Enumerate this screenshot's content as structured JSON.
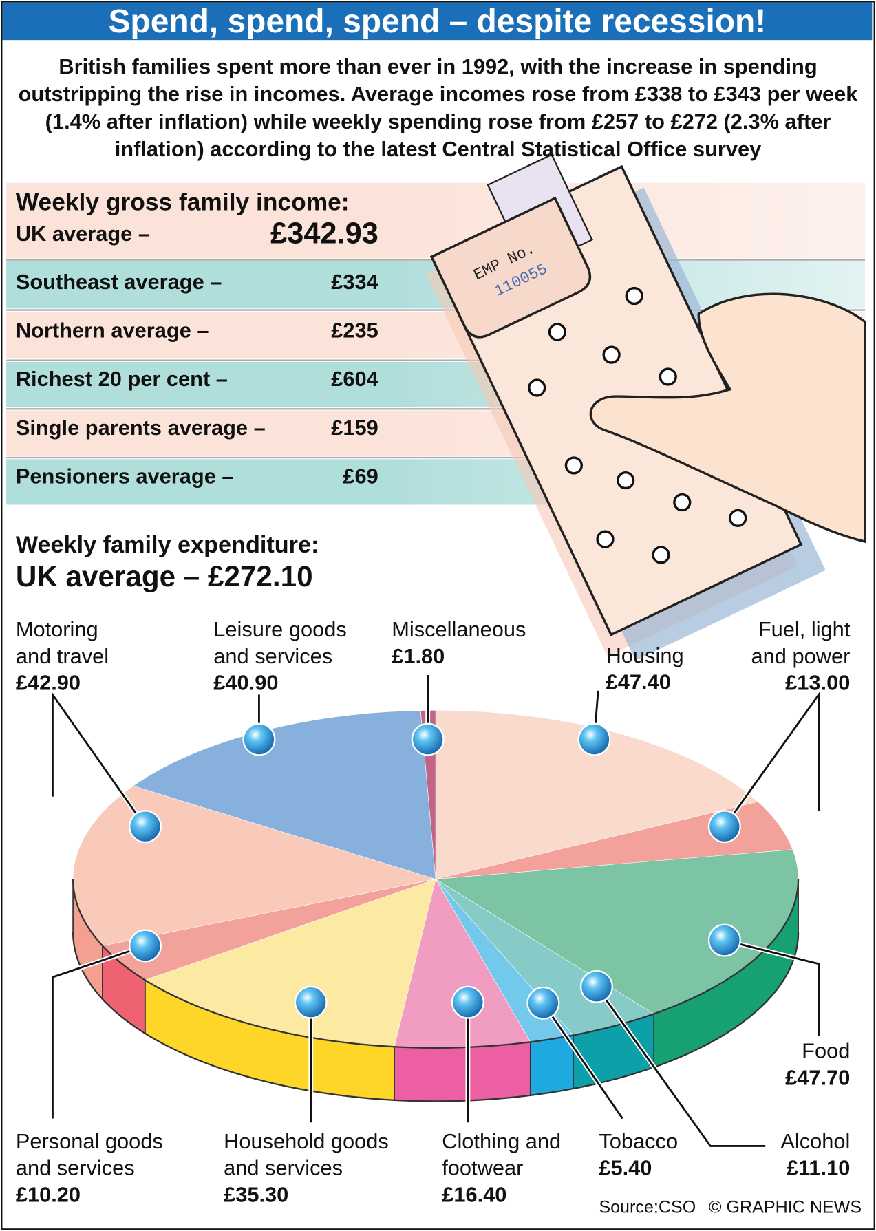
{
  "title": "Spend, spend, spend – despite recession!",
  "intro": "British families spent more than ever in 1992, with the increase in spending outstripping the rise in incomes. Average incomes rose from £338 to £343 per week (1.4% after inflation) while weekly spending rose from £257 to £272 (2.3% after inflation) according to the latest Central Statistical Office survey",
  "income": {
    "heading": "Weekly gross family income:",
    "rows": [
      {
        "label": "UK average –",
        "value": "£342.93"
      },
      {
        "label": "Southeast average –",
        "value": "£334"
      },
      {
        "label": "Northern average –",
        "value": "£235"
      },
      {
        "label": "Richest 20 per cent –",
        "value": "£604"
      },
      {
        "label": "Single parents average –",
        "value": "£159"
      },
      {
        "label": "Pensioners average –",
        "value": "£69"
      }
    ]
  },
  "pay_packet": {
    "label": "EMP No.",
    "number": "110055"
  },
  "chart_data": {
    "type": "pie",
    "title": "Weekly family expenditure:",
    "subtitle": "UK average – £272.10",
    "categories": [
      "Housing",
      "Fuel, light and power",
      "Food",
      "Alcohol",
      "Tobacco",
      "Clothing and footwear",
      "Household goods and services",
      "Personal goods and services",
      "Motoring and travel",
      "Leisure goods and services",
      "Miscellaneous"
    ],
    "values": [
      47.4,
      13.0,
      47.7,
      11.1,
      5.4,
      16.4,
      35.3,
      10.2,
      42.9,
      40.9,
      1.8
    ],
    "value_labels": [
      "£47.40",
      "£13.00",
      "£47.70",
      "£11.10",
      "£5.40",
      "£16.40",
      "£35.30",
      "£10.20",
      "£42.90",
      "£40.90",
      "£1.80"
    ],
    "colors": [
      "#f9dacd",
      "#f2a29a",
      "#7cc4a4",
      "#86cbc8",
      "#72c9ec",
      "#f19dc2",
      "#fce9a2",
      "#f2a29a",
      "#f9c9b9",
      "#88b0dd",
      "#c06585"
    ],
    "side_colors": [
      "#f4b8a8",
      "#ee8c84",
      "#17a071",
      "#0ea0a8",
      "#1fa9e1",
      "#ec5fa2",
      "#fdd628",
      "#ee6272",
      "#f4a090",
      "#5f8fc8",
      "#a04060"
    ]
  },
  "source": "Source:CSO",
  "credit": "© GRAPHIC NEWS"
}
